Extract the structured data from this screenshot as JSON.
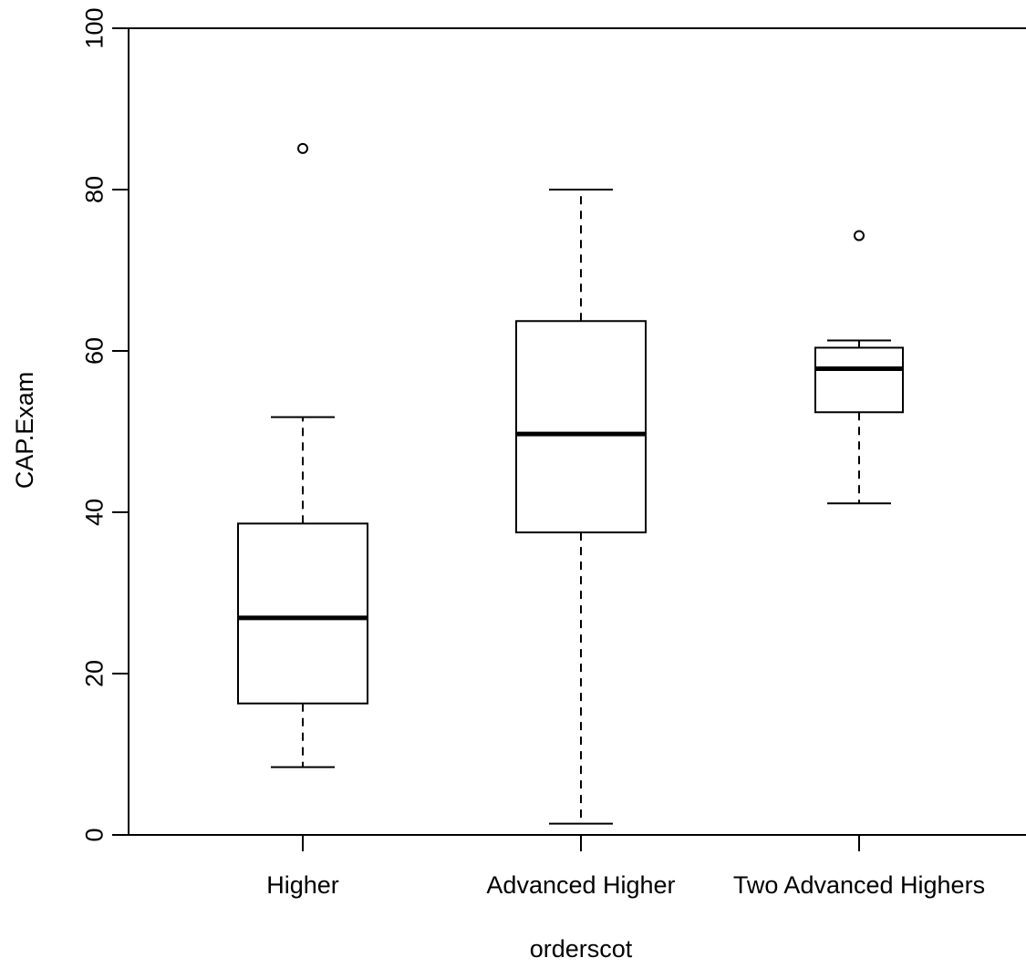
{
  "chart_data": {
    "type": "box",
    "title": "",
    "xlabel": "orderscot",
    "ylabel": "CAP.Exam",
    "ylim": [
      0,
      100
    ],
    "yticks": [
      0,
      20,
      40,
      60,
      80,
      100
    ],
    "grid": false,
    "categories": [
      "Higher",
      "Advanced Higher",
      "Two Advanced Highers"
    ],
    "boxes": [
      {
        "category": "Higher",
        "whisker_low": 8.4,
        "q1": 16.3,
        "median": 26.9,
        "q3": 38.6,
        "whisker_high": 51.8,
        "outliers": [
          85.1
        ]
      },
      {
        "category": "Advanced Higher",
        "whisker_low": 1.4,
        "q1": 37.5,
        "median": 49.7,
        "q3": 63.7,
        "whisker_high": 80.0,
        "outliers": []
      },
      {
        "category": "Two Advanced Highers",
        "whisker_low": 41.1,
        "q1": 52.4,
        "median": 57.8,
        "q3": 60.4,
        "whisker_high": 61.3,
        "outliers": [
          74.3
        ]
      }
    ],
    "colors": {
      "stroke": "#000000",
      "fill": "#ffffff"
    }
  }
}
